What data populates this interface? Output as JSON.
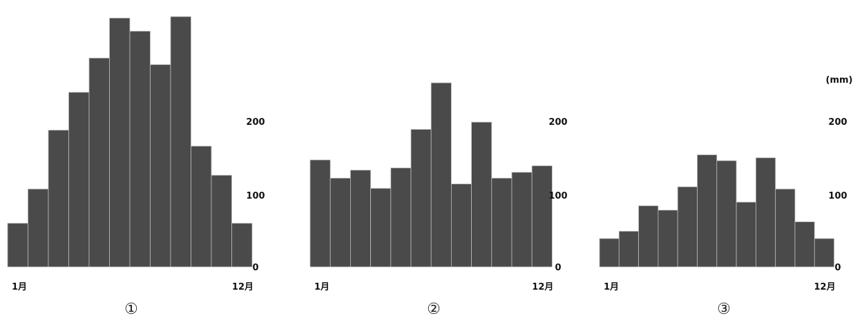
{
  "bar_color": "#4a4a4a",
  "chart_data": [
    {
      "type": "bar",
      "label": "①",
      "x_start_label": "1月",
      "x_end_label": "12月",
      "yticks": [
        "0",
        "100",
        "200"
      ],
      "ylim": [
        0,
        350
      ],
      "unit": "",
      "categories": [
        "1",
        "2",
        "3",
        "4",
        "5",
        "6",
        "7",
        "8",
        "9",
        "10",
        "11",
        "12"
      ],
      "values": [
        60,
        107,
        188,
        240,
        287,
        342,
        324,
        278,
        344,
        166,
        126,
        60
      ]
    },
    {
      "type": "bar",
      "label": "②",
      "x_start_label": "1月",
      "x_end_label": "12月",
      "yticks": [
        "0",
        "100",
        "200"
      ],
      "ylim": [
        0,
        350
      ],
      "unit": "",
      "categories": [
        "1",
        "2",
        "3",
        "4",
        "5",
        "6",
        "7",
        "8",
        "9",
        "10",
        "11",
        "12"
      ],
      "values": [
        147,
        122,
        133,
        108,
        136,
        189,
        253,
        114,
        199,
        122,
        130,
        139
      ]
    },
    {
      "type": "bar",
      "label": "③",
      "x_start_label": "1月",
      "x_end_label": "12月",
      "yticks": [
        "0",
        "100",
        "200"
      ],
      "ylim": [
        0,
        350
      ],
      "unit": "(mm)",
      "categories": [
        "1",
        "2",
        "3",
        "4",
        "5",
        "6",
        "7",
        "8",
        "9",
        "10",
        "11",
        "12"
      ],
      "values": [
        39,
        49,
        84,
        78,
        110,
        154,
        146,
        89,
        150,
        107,
        62,
        39
      ]
    }
  ]
}
